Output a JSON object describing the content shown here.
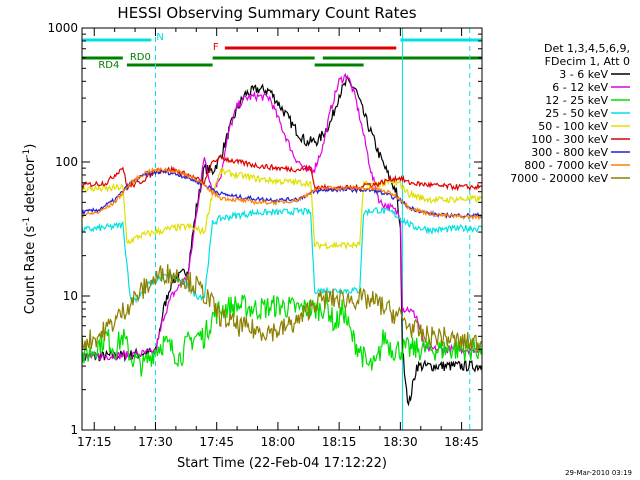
{
  "chart_data": {
    "type": "line",
    "title": "HESSI Observing Summary Count Rates",
    "xlabel": "Start Time (22-Feb-04 17:12:22)",
    "ylabel_main": "Count Rate (s",
    "ylabel_sup1": "-1",
    "ylabel_mid": " detector",
    "ylabel_sup2": "-1",
    "ylabel_end": ")",
    "y_scale": "log",
    "ylim": [
      1,
      1000
    ],
    "xlim_minutes": [
      1032,
      1130
    ],
    "x_ticks": [
      "17:15",
      "17:30",
      "17:45",
      "18:00",
      "18:15",
      "18:30",
      "18:45"
    ],
    "x_tick_minutes": [
      1035,
      1050,
      1065,
      1080,
      1095,
      1110,
      1125
    ],
    "y_ticks": [
      "1",
      "10",
      "100",
      "1000"
    ],
    "y_tick_values": [
      1,
      10,
      100,
      1000
    ],
    "legend_header": [
      "Det 1,3,4,5,6,9,",
      "FDecim 1, Att 0"
    ],
    "legend_position": "right",
    "series": [
      {
        "name": "3 - 6 keV",
        "color": "#000000",
        "points": [
          [
            1032,
            3.5
          ],
          [
            1042,
            3.6
          ],
          [
            1050,
            3.8
          ],
          [
            1052,
            8
          ],
          [
            1054,
            13
          ],
          [
            1056,
            14
          ],
          [
            1058,
            16
          ],
          [
            1060,
            45
          ],
          [
            1062,
            90
          ],
          [
            1064,
            85
          ],
          [
            1066,
            110
          ],
          [
            1068,
            170
          ],
          [
            1070,
            250
          ],
          [
            1072,
            320
          ],
          [
            1075,
            350
          ],
          [
            1078,
            340
          ],
          [
            1081,
            250
          ],
          [
            1084,
            180
          ],
          [
            1087,
            140
          ],
          [
            1090,
            145
          ],
          [
            1093,
            200
          ],
          [
            1095,
            320
          ],
          [
            1097,
            400
          ],
          [
            1099,
            350
          ],
          [
            1101,
            230
          ],
          [
            1103,
            160
          ],
          [
            1105,
            110
          ],
          [
            1107,
            80
          ],
          [
            1109,
            60
          ],
          [
            1110,
            30
          ],
          [
            1110.5,
            4
          ],
          [
            1112,
            1.5
          ],
          [
            1114,
            3
          ],
          [
            1116,
            3
          ],
          [
            1130,
            3
          ]
        ]
      },
      {
        "name": "6 - 12 keV",
        "color": "#e000e0",
        "points": [
          [
            1032,
            3.5
          ],
          [
            1042,
            3.6
          ],
          [
            1050,
            3.8
          ],
          [
            1052,
            7
          ],
          [
            1054,
            10
          ],
          [
            1056,
            12
          ],
          [
            1058,
            14
          ],
          [
            1060,
            40
          ],
          [
            1062,
            110
          ],
          [
            1064,
            60
          ],
          [
            1066,
            80
          ],
          [
            1068,
            170
          ],
          [
            1070,
            260
          ],
          [
            1072,
            300
          ],
          [
            1075,
            310
          ],
          [
            1078,
            300
          ],
          [
            1081,
            180
          ],
          [
            1084,
            110
          ],
          [
            1087,
            85
          ],
          [
            1089,
            90
          ],
          [
            1091,
            130
          ],
          [
            1093,
            250
          ],
          [
            1095,
            400
          ],
          [
            1097,
            450
          ],
          [
            1099,
            300
          ],
          [
            1101,
            160
          ],
          [
            1103,
            80
          ],
          [
            1105,
            50
          ],
          [
            1108,
            45
          ],
          [
            1110,
            40
          ],
          [
            1110.5,
            8
          ],
          [
            1112,
            8
          ],
          [
            1114,
            7
          ],
          [
            1116,
            4
          ],
          [
            1130,
            4
          ]
        ]
      },
      {
        "name": "12 - 25 keV",
        "color": "#00e000",
        "points": [
          [
            1032,
            3.5
          ],
          [
            1035,
            4
          ],
          [
            1038,
            5
          ],
          [
            1040,
            4
          ],
          [
            1042,
            5
          ],
          [
            1044,
            3.5
          ],
          [
            1047,
            3
          ],
          [
            1050,
            4
          ],
          [
            1052,
            4.5
          ],
          [
            1054,
            4
          ],
          [
            1056,
            3.5
          ],
          [
            1058,
            4.5
          ],
          [
            1060,
            5
          ],
          [
            1062,
            5
          ],
          [
            1064,
            7
          ],
          [
            1066,
            8
          ],
          [
            1070,
            8.5
          ],
          [
            1075,
            8
          ],
          [
            1080,
            8.5
          ],
          [
            1085,
            8
          ],
          [
            1090,
            8
          ],
          [
            1092,
            8.5
          ],
          [
            1094,
            6
          ],
          [
            1096,
            8
          ],
          [
            1098,
            5
          ],
          [
            1100,
            4
          ],
          [
            1102,
            3
          ],
          [
            1104,
            3
          ],
          [
            1106,
            5
          ],
          [
            1108,
            4
          ],
          [
            1110,
            4
          ],
          [
            1115,
            4
          ],
          [
            1120,
            4
          ],
          [
            1130,
            4
          ]
        ]
      },
      {
        "name": "25 - 50 keV",
        "color": "#00e0e0",
        "points": [
          [
            1032,
            31
          ],
          [
            1040,
            33
          ],
          [
            1042,
            34
          ],
          [
            1044,
            9
          ],
          [
            1046,
            10
          ],
          [
            1048,
            12
          ],
          [
            1050,
            13
          ],
          [
            1052,
            14
          ],
          [
            1054,
            14
          ],
          [
            1056,
            13
          ],
          [
            1058,
            12
          ],
          [
            1060,
            10
          ],
          [
            1062,
            10
          ],
          [
            1064,
            35
          ],
          [
            1066,
            38
          ],
          [
            1070,
            40
          ],
          [
            1075,
            42
          ],
          [
            1080,
            42
          ],
          [
            1085,
            43
          ],
          [
            1088,
            42
          ],
          [
            1089,
            11
          ],
          [
            1092,
            11
          ],
          [
            1096,
            11
          ],
          [
            1100,
            11
          ],
          [
            1101,
            42
          ],
          [
            1104,
            44
          ],
          [
            1108,
            42
          ],
          [
            1110,
            38
          ],
          [
            1113,
            33
          ],
          [
            1118,
            31
          ],
          [
            1125,
            32
          ],
          [
            1130,
            32
          ]
        ]
      },
      {
        "name": "50 - 100 keV",
        "color": "#e0e000",
        "points": [
          [
            1032,
            63
          ],
          [
            1038,
            63
          ],
          [
            1040,
            64
          ],
          [
            1042,
            65
          ],
          [
            1043,
            25
          ],
          [
            1046,
            28
          ],
          [
            1050,
            30
          ],
          [
            1054,
            32
          ],
          [
            1058,
            33
          ],
          [
            1062,
            30
          ],
          [
            1064,
            60
          ],
          [
            1066,
            85
          ],
          [
            1070,
            80
          ],
          [
            1075,
            75
          ],
          [
            1080,
            72
          ],
          [
            1085,
            70
          ],
          [
            1088,
            70
          ],
          [
            1089,
            24
          ],
          [
            1092,
            24
          ],
          [
            1096,
            24
          ],
          [
            1100,
            24
          ],
          [
            1101,
            68
          ],
          [
            1104,
            68
          ],
          [
            1108,
            70
          ],
          [
            1110,
            68
          ],
          [
            1112,
            58
          ],
          [
            1116,
            53
          ],
          [
            1120,
            52
          ],
          [
            1125,
            53
          ],
          [
            1130,
            53
          ]
        ]
      },
      {
        "name": "100 - 300 keV",
        "color": "#e00000",
        "points": [
          [
            1032,
            67
          ],
          [
            1038,
            70
          ],
          [
            1040,
            80
          ],
          [
            1042,
            92
          ],
          [
            1043,
            65
          ],
          [
            1046,
            70
          ],
          [
            1050,
            85
          ],
          [
            1054,
            88
          ],
          [
            1058,
            80
          ],
          [
            1062,
            70
          ],
          [
            1064,
            100
          ],
          [
            1066,
            108
          ],
          [
            1070,
            100
          ],
          [
            1075,
            94
          ],
          [
            1080,
            90
          ],
          [
            1085,
            88
          ],
          [
            1088,
            90
          ],
          [
            1089,
            65
          ],
          [
            1092,
            64
          ],
          [
            1096,
            64
          ],
          [
            1100,
            64
          ],
          [
            1101,
            68
          ],
          [
            1104,
            68
          ],
          [
            1108,
            75
          ],
          [
            1110,
            76
          ],
          [
            1112,
            70
          ],
          [
            1116,
            68
          ],
          [
            1120,
            66
          ],
          [
            1125,
            65
          ],
          [
            1130,
            65
          ]
        ]
      },
      {
        "name": "300 - 800 keV",
        "color": "#2020e0",
        "points": [
          [
            1032,
            42
          ],
          [
            1036,
            44
          ],
          [
            1040,
            52
          ],
          [
            1044,
            70
          ],
          [
            1048,
            82
          ],
          [
            1052,
            85
          ],
          [
            1056,
            80
          ],
          [
            1060,
            72
          ],
          [
            1063,
            65
          ],
          [
            1066,
            58
          ],
          [
            1070,
            55
          ],
          [
            1075,
            53
          ],
          [
            1080,
            52
          ],
          [
            1085,
            53
          ],
          [
            1089,
            60
          ],
          [
            1092,
            62
          ],
          [
            1096,
            62
          ],
          [
            1100,
            62
          ],
          [
            1104,
            61
          ],
          [
            1108,
            55
          ],
          [
            1110,
            52
          ],
          [
            1112,
            46
          ],
          [
            1116,
            42
          ],
          [
            1120,
            40
          ],
          [
            1125,
            40
          ],
          [
            1130,
            40
          ]
        ]
      },
      {
        "name": "800 - 7000 keV",
        "color": "#ff8000",
        "points": [
          [
            1032,
            40
          ],
          [
            1036,
            42
          ],
          [
            1040,
            50
          ],
          [
            1044,
            70
          ],
          [
            1048,
            85
          ],
          [
            1052,
            88
          ],
          [
            1056,
            84
          ],
          [
            1060,
            75
          ],
          [
            1063,
            62
          ],
          [
            1066,
            54
          ],
          [
            1070,
            52
          ],
          [
            1075,
            50
          ],
          [
            1080,
            50
          ],
          [
            1085,
            52
          ],
          [
            1089,
            62
          ],
          [
            1092,
            64
          ],
          [
            1096,
            64
          ],
          [
            1100,
            64
          ],
          [
            1104,
            63
          ],
          [
            1108,
            58
          ],
          [
            1110,
            53
          ],
          [
            1112,
            46
          ],
          [
            1116,
            42
          ],
          [
            1120,
            40
          ],
          [
            1125,
            39
          ],
          [
            1130,
            39
          ]
        ]
      },
      {
        "name": "7000 - 20000 keV",
        "color": "#8b8000",
        "points": [
          [
            1032,
            4.5
          ],
          [
            1036,
            5
          ],
          [
            1040,
            6.5
          ],
          [
            1044,
            9
          ],
          [
            1048,
            12
          ],
          [
            1052,
            15
          ],
          [
            1056,
            14
          ],
          [
            1060,
            12
          ],
          [
            1063,
            9.5
          ],
          [
            1066,
            7
          ],
          [
            1070,
            6
          ],
          [
            1075,
            5.5
          ],
          [
            1080,
            5.5
          ],
          [
            1085,
            6.5
          ],
          [
            1089,
            9
          ],
          [
            1092,
            9.5
          ],
          [
            1096,
            9.5
          ],
          [
            1100,
            9.5
          ],
          [
            1104,
            9
          ],
          [
            1108,
            7.5
          ],
          [
            1110,
            7
          ],
          [
            1112,
            6
          ],
          [
            1116,
            5
          ],
          [
            1120,
            5
          ],
          [
            1125,
            4.5
          ],
          [
            1130,
            4.5
          ]
        ]
      }
    ],
    "flag_bars": [
      {
        "label": "N",
        "color": "#00e0e0",
        "segments": [
          [
            1032,
            1049
          ],
          [
            1110,
            1130
          ]
        ],
        "level": 0
      },
      {
        "label": "F",
        "color": "#e00000",
        "segments": [
          [
            1067,
            1109
          ]
        ],
        "level": 1
      },
      {
        "label": "RD0",
        "color": "#008000",
        "segments": [
          [
            1032,
            1042
          ],
          [
            1064,
            1089
          ],
          [
            1091,
            1130
          ]
        ],
        "level": 2
      },
      {
        "label": "",
        "color": "#008000",
        "segments": [
          [
            1089,
            1101
          ]
        ],
        "level": 3
      },
      {
        "label": "RD4",
        "color": "#008000",
        "segments": [
          [
            1043,
            1064
          ]
        ],
        "level": 3
      }
    ],
    "vlines_solid": [
      1110.5
    ],
    "vlines_dashed": [
      1050,
      1127
    ],
    "footer_date": "29-Mar-2010 03:19"
  }
}
